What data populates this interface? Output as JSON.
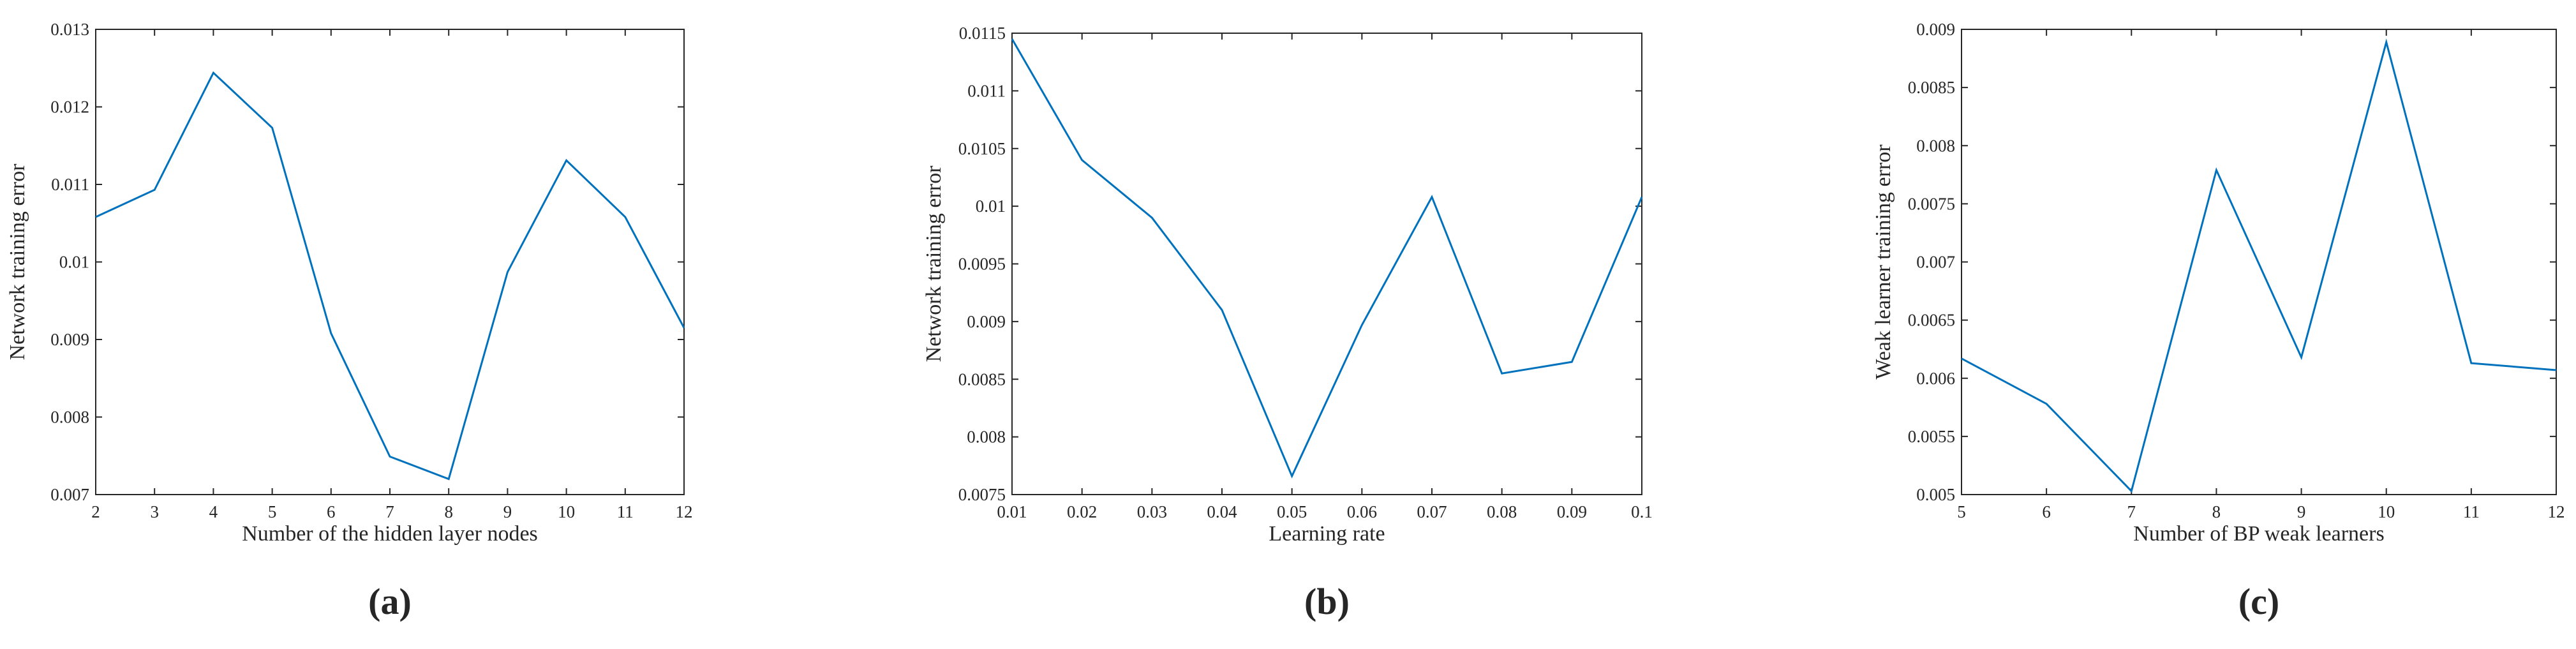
{
  "chart_data": [
    {
      "type": "line",
      "caption": "(a)",
      "xlabel": "Number of the hidden layer nodes",
      "ylabel": "Network training error",
      "color": "#0072bd",
      "x": [
        2,
        3,
        4,
        5,
        6,
        7,
        8,
        9,
        10,
        11,
        12
      ],
      "values": [
        0.01058,
        0.01093,
        0.01244,
        0.01173,
        0.00908,
        0.00749,
        0.0072,
        0.00987,
        0.01131,
        0.01058,
        0.00915
      ],
      "xlim": [
        2,
        12
      ],
      "xticks": [
        2,
        3,
        4,
        5,
        6,
        7,
        8,
        9,
        10,
        11,
        12
      ],
      "ylim": [
        0.007,
        0.013
      ],
      "yticks": [
        0.007,
        0.008,
        0.009,
        0.01,
        0.011,
        0.012,
        0.013
      ]
    },
    {
      "type": "line",
      "caption": "(b)",
      "xlabel": "Learning rate",
      "ylabel": "Network training error",
      "color": "#0072bd",
      "x": [
        0.01,
        0.02,
        0.03,
        0.04,
        0.05,
        0.06,
        0.07,
        0.08,
        0.09,
        0.1
      ],
      "values": [
        0.01145,
        0.0104,
        0.0099,
        0.0091,
        0.00766,
        0.00897,
        0.01008,
        0.00855,
        0.00865,
        0.01008
      ],
      "xlim": [
        0.01,
        0.1
      ],
      "xticks": [
        0.01,
        0.02,
        0.03,
        0.04,
        0.05,
        0.06,
        0.07,
        0.08,
        0.09,
        0.1
      ],
      "ylim": [
        0.0075,
        0.0115
      ],
      "yticks": [
        0.0075,
        0.008,
        0.0085,
        0.009,
        0.0095,
        0.01,
        0.0105,
        0.011,
        0.0115
      ]
    },
    {
      "type": "line",
      "caption": "(c)",
      "xlabel": "Number of BP weak learners",
      "ylabel": "Weak learner training error",
      "color": "#0072bd",
      "x": [
        5,
        6,
        7,
        8,
        9,
        10,
        11,
        12
      ],
      "values": [
        0.00617,
        0.00578,
        0.00503,
        0.00779,
        0.00618,
        0.00889,
        0.00613,
        0.00607
      ],
      "xlim": [
        5,
        12
      ],
      "xticks": [
        5,
        6,
        7,
        8,
        9,
        10,
        11,
        12
      ],
      "ylim": [
        0.005,
        0.009
      ],
      "yticks": [
        0.005,
        0.0055,
        0.006,
        0.0065,
        0.007,
        0.0075,
        0.008,
        0.0085,
        0.009
      ]
    }
  ]
}
